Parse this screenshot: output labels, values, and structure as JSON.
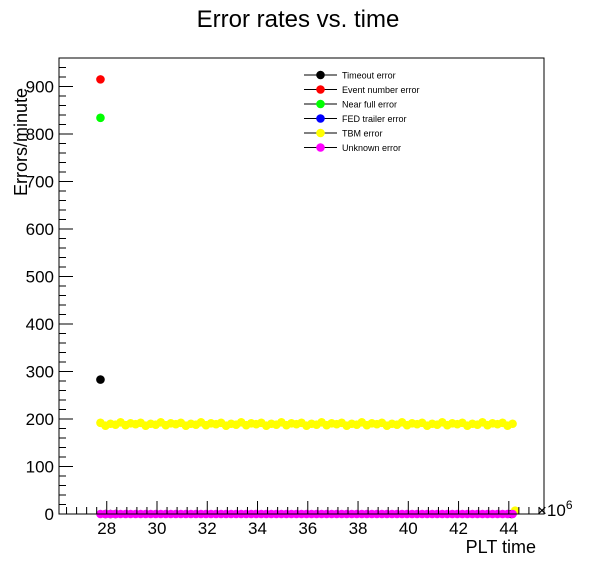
{
  "chart_data": {
    "type": "scatter",
    "title": "Error rates vs. time",
    "xlabel": "PLT time",
    "ylabel": "Errors/minute",
    "x_multiplier_label": "×10",
    "x_multiplier_exponent": "6",
    "xlim": [
      26.1,
      45.4
    ],
    "ylim": [
      0,
      960
    ],
    "x_major_ticks": [
      28,
      30,
      32,
      34,
      36,
      38,
      40,
      42,
      44
    ],
    "y_major_ticks": [
      0,
      100,
      200,
      300,
      400,
      500,
      600,
      700,
      800,
      900
    ],
    "grid": false,
    "legend_position": "top-right",
    "series": [
      {
        "name": "Timeout error",
        "color": "#000000",
        "x": [
          27.75,
          27.95,
          28.15,
          28.35,
          44.1
        ],
        "y": [
          283,
          0,
          0,
          0,
          0
        ]
      },
      {
        "name": "Event number error",
        "color": "#ff0000",
        "x": [
          27.75
        ],
        "y": [
          915
        ]
      },
      {
        "name": "Near full error",
        "color": "#00ff00",
        "x": [
          27.75
        ],
        "y": [
          834
        ]
      },
      {
        "name": "FED trailer error",
        "color": "#0000ff",
        "x": [],
        "y": []
      },
      {
        "name": "TBM error",
        "color": "#ffff00",
        "x_start": 27.75,
        "x_end": 44.25,
        "x_step": 0.2,
        "y_values": [
          192,
          186,
          190,
          188,
          193,
          187,
          191,
          189
        ],
        "extra_points": [
          {
            "x": 44.25,
            "y": 7
          }
        ]
      },
      {
        "name": "Unknown error",
        "color": "#ff00ff",
        "x_start": 27.75,
        "x_end": 44.25,
        "x_step": 0.2,
        "y_constant": 0
      }
    ]
  }
}
